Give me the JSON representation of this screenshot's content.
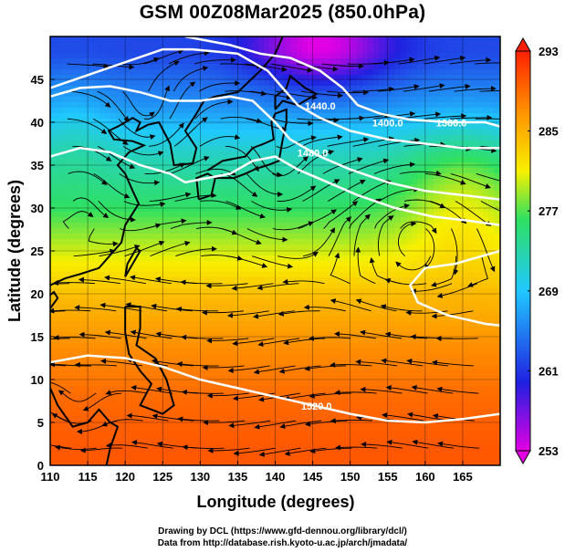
{
  "title": "GSM 00Z08Mar2025 (850.0hPa)",
  "xlabel": "Longitude (degrees)",
  "ylabel": "Latitude  (degrees)",
  "credits": {
    "line1": "Drawing by DCL (https://www.gfd-dennou.org/library/dcl/)",
    "line2": "Data from http://database.rish.kyoto-u.ac.jp/arch/jmadata/"
  },
  "chart_data": {
    "type": "heatmap",
    "field": "temperature with streamlines and geopotential height contours",
    "xlim": [
      110,
      170
    ],
    "ylim": [
      0,
      50
    ],
    "x_ticks": [
      110,
      115,
      120,
      125,
      130,
      135,
      140,
      145,
      150,
      155,
      160,
      165
    ],
    "y_ticks": [
      0,
      5,
      10,
      15,
      20,
      25,
      30,
      35,
      40,
      45
    ],
    "grid": true,
    "colorbar": {
      "min": 253,
      "max": 293,
      "ticks": [
        293,
        285,
        277,
        269,
        261,
        253
      ],
      "colors": [
        "#e400e4",
        "#2020e0",
        "#20c8ff",
        "#30e060",
        "#f8f000",
        "#ff9000",
        "#ff2000"
      ]
    },
    "temperature_bands": [
      {
        "lat": 48,
        "value": 262
      },
      {
        "lat": 42,
        "value": 266
      },
      {
        "lat": 36,
        "value": 272
      },
      {
        "lat": 30,
        "value": 276
      },
      {
        "lat": 25,
        "value": 280
      },
      {
        "lat": 20,
        "value": 284
      },
      {
        "lat": 14,
        "value": 287
      },
      {
        "lat": 8,
        "value": 289
      },
      {
        "lat": 2,
        "value": 290
      }
    ],
    "contour_labels": [
      {
        "text": "1440.0",
        "lon": 146.0,
        "lat": 41.5
      },
      {
        "text": "1400.0",
        "lon": 155.0,
        "lat": 39.5
      },
      {
        "text": "1360.0",
        "lon": 163.5,
        "lat": 39.5
      },
      {
        "text": "1480.0",
        "lon": 145.0,
        "lat": 36.0
      },
      {
        "text": "1520.0",
        "lon": 145.5,
        "lat": 6.5
      }
    ]
  }
}
